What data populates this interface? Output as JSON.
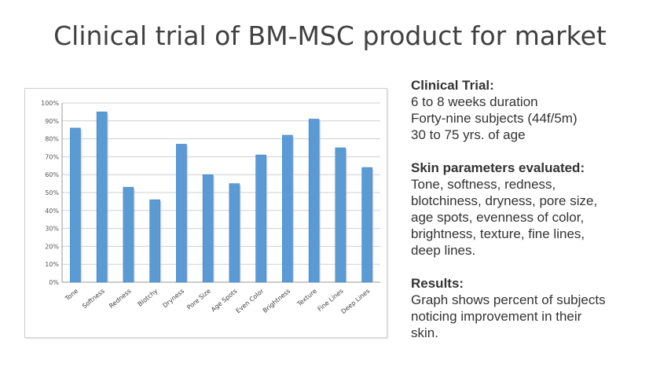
{
  "slide": {
    "title": "Clinical trial of BM-MSC product for market"
  },
  "info": {
    "trial_heading": "Clinical Trial:",
    "trial_lines": [
      "6 to 8 weeks duration",
      "Forty-nine subjects (44f/5m)",
      "30 to 75 yrs. of age"
    ],
    "params_heading": "Skin parameters evaluated:",
    "params_lines": [
      "Tone, softness, redness,",
      "blotchiness, dryness, pore size,",
      "age spots, evenness of color,",
      "brightness, texture, fine lines,",
      "deep lines."
    ],
    "results_heading": "Results:",
    "results_lines": [
      "Graph shows percent of subjects",
      "noticing improvement in their",
      "skin."
    ]
  },
  "colors": {
    "bar": "#5b9bd5",
    "bar_edge": "#3f7fbf",
    "grid": "#d0d0d0",
    "axis": "#999999"
  },
  "chart_data": {
    "type": "bar",
    "title": "",
    "xlabel": "",
    "ylabel": "",
    "categories": [
      "Tone",
      "Softness",
      "Redness",
      "Blotchy",
      "Dryness",
      "Pore Size",
      "Age Spots",
      "Even Color",
      "Brightness",
      "Texture",
      "Fine Lines",
      "Deep Lines"
    ],
    "values": [
      86,
      95,
      53,
      46,
      77,
      60,
      55,
      71,
      82,
      91,
      75,
      64
    ],
    "ylim": [
      0,
      100
    ],
    "yticks": [
      "0%",
      "10%",
      "20%",
      "30%",
      "40%",
      "50%",
      "60%",
      "70%",
      "80%",
      "90%",
      "100%"
    ],
    "grid": true,
    "legend": "none"
  }
}
